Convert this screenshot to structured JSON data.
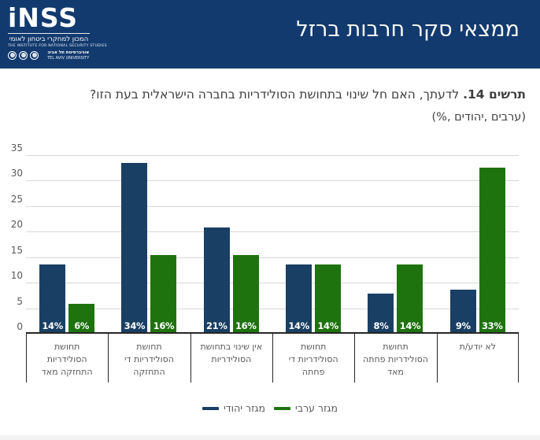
{
  "header": {
    "bg_color": "#123a6e",
    "title": "ממצאי סקר חרבות ברזל",
    "logo": {
      "brand": "iNSS",
      "tagline_he": "המכון למחקרי ביטחון לאומי",
      "tagline_en": "THE INSTITUTE FOR NATIONAL SECURITY STUDIES",
      "university_he": "אוניברסיטת תל אביב",
      "university_en": "TEL AVIV UNIVERSITY"
    }
  },
  "caption": {
    "figure_label": "תרשים 14.",
    "question": "לדעתך, האם חל שינוי בתחושת הסולידריות בחברה הישראלית בעת הזו?",
    "unit_note": "(ערבים ,יהודים ,%)"
  },
  "chart_data": {
    "type": "bar",
    "title": "לדעתך, האם חל שינוי בתחושת הסולידריות בחברה הישראלית בעת הזו?",
    "subtitle": "(%, יהודים, ערבים)",
    "categories": [
      "תחושת\nהסולידריות\nהתחזקה מאד",
      "תחושת\nהסולידריות די\nהתחזקה",
      "אין שינוי בתחושת\nהסולידריות",
      "תחושת\nהסולידריות די\nפחתה",
      "תחושת\nהסולידריות פחתה\nמאד",
      "לא יודע/ת"
    ],
    "series": [
      {
        "name": "מגזר יהודי",
        "color": "#1a3f64",
        "values": [
          14,
          34,
          21,
          14,
          8,
          9
        ],
        "labels": [
          "14%",
          "34%",
          "21%",
          "14%",
          "8%",
          "9%"
        ],
        "plotted": [
          13.6,
          33.5,
          20.8,
          13.6,
          7.8,
          8.7
        ]
      },
      {
        "name": "מגזר ערבי",
        "color": "#1e730f",
        "values": [
          6,
          16,
          16,
          14,
          14,
          33
        ],
        "labels": [
          "6%",
          "16%",
          "16%",
          "14%",
          "14%",
          "33%"
        ],
        "plotted": [
          5.8,
          15.4,
          15.4,
          13.6,
          13.6,
          32.5
        ]
      }
    ],
    "ylim": [
      0,
      35
    ],
    "yticks": [
      0,
      5,
      10,
      15,
      20,
      25,
      30,
      35
    ],
    "grid": true,
    "legend_position": "bottom",
    "axis_color": "#262626",
    "grid_color": "#d9d9d9",
    "tick_label_color": "#595959"
  }
}
